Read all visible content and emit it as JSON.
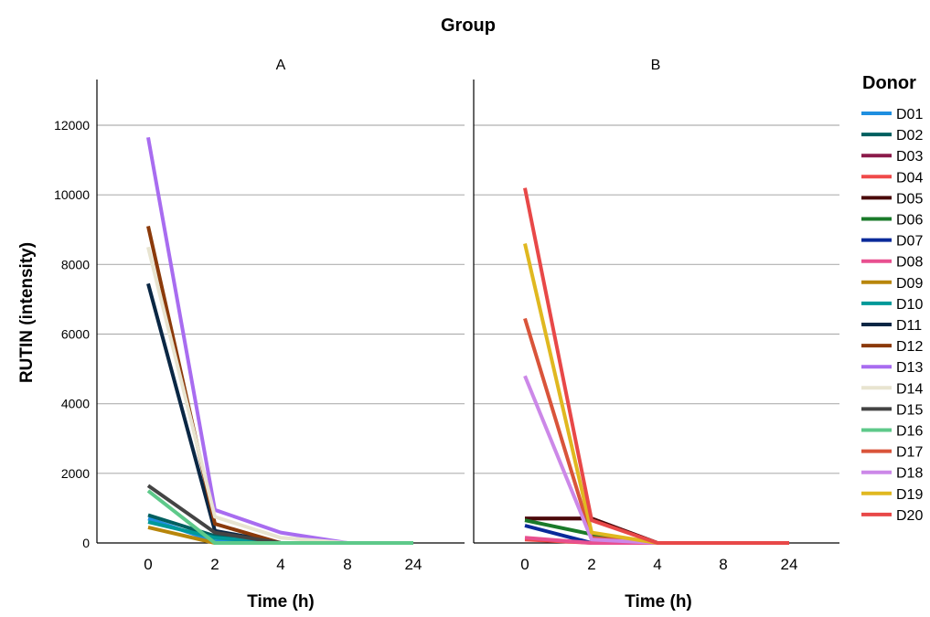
{
  "chart_data": {
    "type": "line",
    "title": "Group",
    "xlabel": "Time (h)",
    "ylabel": "RUTIN (intensity)",
    "x_categories": [
      "0",
      "2",
      "4",
      "8",
      "24"
    ],
    "yticks": [
      "0",
      "2000",
      "4000",
      "6000",
      "8000",
      "10000",
      "12000"
    ],
    "ylim": [
      0,
      13200
    ],
    "grid": true,
    "legend_title": "Donor",
    "legend_position": "right",
    "facets": [
      {
        "label": "A",
        "series": [
          {
            "name": "D01",
            "color": "#1f8fe0",
            "values": [
              700,
              50,
              0,
              0,
              0
            ]
          },
          {
            "name": "D02",
            "color": "#005f5f",
            "values": [
              800,
              200,
              0,
              0,
              0
            ]
          },
          {
            "name": "D09",
            "color": "#b8860b",
            "values": [
              450,
              0,
              0,
              0,
              0
            ]
          },
          {
            "name": "D10",
            "color": "#009999",
            "values": [
              600,
              150,
              0,
              0,
              0
            ]
          },
          {
            "name": "D11",
            "color": "#0a2744",
            "values": [
              7450,
              350,
              0,
              0,
              0
            ]
          },
          {
            "name": "D12",
            "color": "#8b3a0a",
            "values": [
              9100,
              550,
              0,
              0,
              0
            ]
          },
          {
            "name": "D13",
            "color": "#a86cf0",
            "values": [
              11650,
              950,
              300,
              0,
              0
            ]
          },
          {
            "name": "D14",
            "color": "#e8e4d0",
            "values": [
              8500,
              750,
              150,
              0,
              0
            ]
          },
          {
            "name": "D15",
            "color": "#444444",
            "values": [
              1650,
              300,
              0,
              0,
              0
            ]
          },
          {
            "name": "D16",
            "color": "#5ec98a",
            "values": [
              1500,
              0,
              0,
              0,
              0
            ]
          }
        ]
      },
      {
        "label": "B",
        "series": [
          {
            "name": "D03",
            "color": "#8b1a4a",
            "values": [
              700,
              700,
              0,
              0,
              0
            ]
          },
          {
            "name": "D04",
            "color": "#f04a4a",
            "values": [
              100,
              0,
              0,
              0,
              0
            ]
          },
          {
            "name": "D05",
            "color": "#4a0a0a",
            "values": [
              700,
              700,
              0,
              0,
              0
            ]
          },
          {
            "name": "D06",
            "color": "#1a7a2a",
            "values": [
              650,
              250,
              0,
              0,
              0
            ]
          },
          {
            "name": "D07",
            "color": "#0a2a9a",
            "values": [
              500,
              0,
              0,
              0,
              0
            ]
          },
          {
            "name": "D08",
            "color": "#e85090",
            "values": [
              150,
              0,
              0,
              0,
              0
            ]
          },
          {
            "name": "D17",
            "color": "#d9543a",
            "values": [
              6450,
              150,
              0,
              0,
              0
            ]
          },
          {
            "name": "D18",
            "color": "#cc88e8",
            "values": [
              4800,
              100,
              0,
              0,
              0
            ]
          },
          {
            "name": "D19",
            "color": "#e0b820",
            "values": [
              8600,
              300,
              0,
              0,
              0
            ]
          },
          {
            "name": "D20",
            "color": "#e84848",
            "values": [
              10200,
              650,
              0,
              0,
              0
            ]
          }
        ]
      }
    ],
    "legend": [
      {
        "name": "D01",
        "color": "#1f8fe0"
      },
      {
        "name": "D02",
        "color": "#005f5f"
      },
      {
        "name": "D03",
        "color": "#8b1a4a"
      },
      {
        "name": "D04",
        "color": "#f04a4a"
      },
      {
        "name": "D05",
        "color": "#4a0a0a"
      },
      {
        "name": "D06",
        "color": "#1a7a2a"
      },
      {
        "name": "D07",
        "color": "#0a2a9a"
      },
      {
        "name": "D08",
        "color": "#e85090"
      },
      {
        "name": "D09",
        "color": "#b8860b"
      },
      {
        "name": "D10",
        "color": "#009999"
      },
      {
        "name": "D11",
        "color": "#0a2744"
      },
      {
        "name": "D12",
        "color": "#8b3a0a"
      },
      {
        "name": "D13",
        "color": "#a86cf0"
      },
      {
        "name": "D14",
        "color": "#e8e4d0"
      },
      {
        "name": "D15",
        "color": "#444444"
      },
      {
        "name": "D16",
        "color": "#5ec98a"
      },
      {
        "name": "D17",
        "color": "#d9543a"
      },
      {
        "name": "D18",
        "color": "#cc88e8"
      },
      {
        "name": "D19",
        "color": "#e0b820"
      },
      {
        "name": "D20",
        "color": "#e84848"
      }
    ]
  }
}
